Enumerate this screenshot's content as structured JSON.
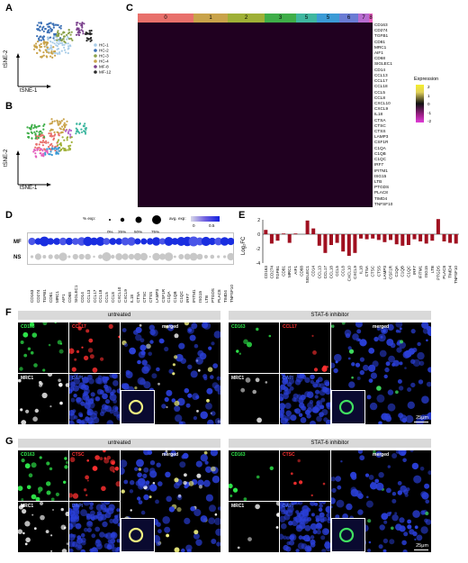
{
  "panels": {
    "A": "A",
    "B": "B",
    "C": "C",
    "D": "D",
    "E": "E",
    "F": "F",
    "G": "G"
  },
  "tsne": {
    "xlabel": "tSNE-1",
    "ylabel": "tSNE-2"
  },
  "legend_a": [
    "HC-1",
    "HC-2",
    "HC-3",
    "HC-4",
    "MF-8",
    "MF-12"
  ],
  "colors": {
    "hc1": "#a9cde8",
    "hc2": "#3a6fb5",
    "hc3": "#8aa14a",
    "hc4": "#c9a34a",
    "mf8": "#7a3f8c",
    "mf12": "#2b2b2b"
  },
  "clusters": [
    {
      "label": "0",
      "color": "#e8706b"
    },
    {
      "label": "1",
      "color": "#c9a34a"
    },
    {
      "label": "2",
      "color": "#9fb036"
    },
    {
      "label": "3",
      "color": "#3fae49"
    },
    {
      "label": "5",
      "color": "#3fb7a0"
    },
    {
      "label": "5",
      "color": "#3b9bd6"
    },
    {
      "label": "6",
      "color": "#6a7cd4"
    },
    {
      "label": "7",
      "color": "#b86bd0"
    },
    {
      "label": "8",
      "color": "#e45fbd"
    }
  ],
  "heatmap_genes": [
    "CD163",
    "CD274",
    "TGFB1",
    "CD81",
    "MRC1",
    "AIF1",
    "CD68",
    "SIGLEC1",
    "CD14",
    "CCL13",
    "CCL17",
    "CCL18",
    "CCL5",
    "CCL8",
    "CXCL10",
    "CXCL9",
    "IL18",
    "CTSA",
    "CTSC",
    "CTSS",
    "LAMP3",
    "CSF1R",
    "C1QA",
    "C1QB",
    "C1QC",
    "IRF7",
    "IFITM1",
    "ISG15",
    "LTB",
    "PTGDS",
    "PLAC8",
    "TIMD4",
    "TNFSF10"
  ],
  "heatmap_legend": {
    "title": "Expression",
    "ticks": [
      "2",
      "1",
      "0",
      "-1",
      "-2"
    ]
  },
  "dot": {
    "pct_title": "% exp:",
    "pct_ticks": [
      "0%",
      "25%",
      "50%",
      "75%"
    ],
    "avg_title": "avg. exp:",
    "avg_ticks": [
      "0",
      "0.5"
    ],
    "rows": [
      "MF",
      "NS"
    ],
    "genes": [
      "CD163",
      "CD274",
      "TGFB1",
      "CD81",
      "MRC1",
      "AIF1",
      "CD68",
      "SIGLEC1",
      "CD14",
      "CCL13",
      "CCL17",
      "CCL18",
      "CCL5",
      "CCL8",
      "CXCL10",
      "CXCL9",
      "IL18",
      "CTSA",
      "CTSC",
      "CTSS",
      "LAMP3",
      "CSF1R",
      "C1QA",
      "C1QB",
      "C1QC",
      "IRF7",
      "IFITM1",
      "ISG15",
      "LTB",
      "PTGDS",
      "PLAC8",
      "TIMD4",
      "TNFSF10"
    ]
  },
  "chart_data": {
    "type": "bar",
    "ylabel": "Log₂FC",
    "ylim": [
      -4,
      2
    ],
    "yticks": [
      "2",
      "0",
      "-2",
      "-4"
    ],
    "categories": [
      "CD163",
      "CD274",
      "TGFB1",
      "CD81",
      "MRC1",
      "AIF1",
      "CD68",
      "SIGLEC1",
      "CD14",
      "CCL13",
      "CCL17",
      "CCL18",
      "CCL5",
      "CCL8",
      "CXCL10",
      "CXCL9",
      "IL18",
      "CTSA",
      "CTSC",
      "CTSS",
      "LAMP3",
      "CSF1R",
      "C1QA",
      "C1QB",
      "C1QC",
      "IRF7",
      "IFITM1",
      "ISG15",
      "LTB",
      "PTGDS",
      "PLAC8",
      "TIMD4",
      "TNFSF10"
    ],
    "values": [
      0.6,
      -1.3,
      -0.9,
      0.1,
      -1.2,
      0.1,
      0.0,
      1.9,
      0.8,
      -1.6,
      -2.6,
      -1.5,
      -1.2,
      -2.4,
      -3.0,
      -2.6,
      -0.6,
      -0.7,
      -0.6,
      -0.8,
      -1.1,
      -0.8,
      -1.4,
      -1.6,
      -1.5,
      -0.7,
      -1.0,
      -1.3,
      -0.9,
      2.1,
      -1.0,
      -1.2,
      -1.3
    ]
  },
  "if_f": {
    "untreated": "untreated",
    "inhibitor": "STAT-6 inhibitor",
    "ch1": "CD163",
    "ch2": "CCL17",
    "ch3": "MRC1",
    "ch4": "DAPI",
    "merged": "merged",
    "scale": "25μm"
  },
  "if_g": {
    "untreated": "untreated",
    "inhibitor": "STAT-6 inhibitor",
    "ch1": "CD163",
    "ch2": "CTSC",
    "ch3": "MRC1",
    "ch4": "DAPI",
    "merged": "merged",
    "scale": "25μm"
  }
}
